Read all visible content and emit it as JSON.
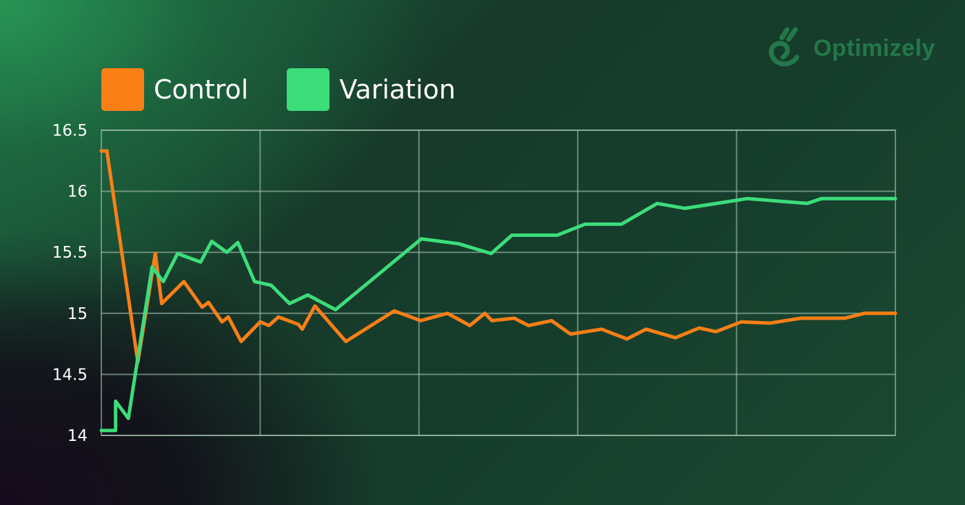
{
  "brand": {
    "name": "Optimizely",
    "icon": "optimizely-logo-icon",
    "color": "#24774a"
  },
  "legend": [
    {
      "label": "Control",
      "color": "#f97f16"
    },
    {
      "label": "Variation",
      "color": "#3ddc7b"
    }
  ],
  "chart_data": {
    "type": "line",
    "title": "",
    "xlabel": "",
    "ylabel": "",
    "ylim": [
      14,
      16.5
    ],
    "yticks": [
      "14",
      "14.5",
      "15",
      "15.5",
      "16",
      "16.5"
    ],
    "xlim": [
      0,
      100
    ],
    "x_gridlines": 5,
    "grid": true,
    "legend_position": "top-left",
    "series": [
      {
        "name": "Control",
        "color": "#f97f16",
        "points": [
          [
            0,
            16.33
          ],
          [
            0.7,
            16.33
          ],
          [
            4.6,
            14.6
          ],
          [
            6.8,
            15.49
          ],
          [
            7.6,
            15.08
          ],
          [
            10.4,
            15.26
          ],
          [
            12.7,
            15.05
          ],
          [
            13.5,
            15.09
          ],
          [
            15.2,
            14.93
          ],
          [
            16.0,
            14.97
          ],
          [
            17.6,
            14.77
          ],
          [
            20.0,
            14.93
          ],
          [
            21.1,
            14.9
          ],
          [
            22.3,
            14.97
          ],
          [
            24.8,
            14.91
          ],
          [
            25.3,
            14.87
          ],
          [
            26.9,
            15.06
          ],
          [
            30.8,
            14.77
          ],
          [
            36.9,
            15.02
          ],
          [
            40.2,
            14.94
          ],
          [
            43.6,
            15.0
          ],
          [
            46.4,
            14.9
          ],
          [
            48.3,
            15.0
          ],
          [
            49.2,
            14.94
          ],
          [
            52.0,
            14.96
          ],
          [
            53.8,
            14.9
          ],
          [
            56.7,
            14.94
          ],
          [
            59.1,
            14.83
          ],
          [
            63.0,
            14.87
          ],
          [
            66.2,
            14.79
          ],
          [
            68.6,
            14.87
          ],
          [
            72.3,
            14.8
          ],
          [
            75.3,
            14.88
          ],
          [
            77.4,
            14.85
          ],
          [
            80.6,
            14.93
          ],
          [
            84.2,
            14.92
          ],
          [
            88.1,
            14.96
          ],
          [
            93.6,
            14.96
          ],
          [
            96.1,
            15.0
          ],
          [
            100,
            15.0
          ]
        ]
      },
      {
        "name": "Variation",
        "color": "#3ddc7b",
        "points": [
          [
            0,
            14.04
          ],
          [
            1.8,
            14.04
          ],
          [
            1.8,
            14.28
          ],
          [
            3.4,
            14.14
          ],
          [
            6.4,
            15.38
          ],
          [
            7.8,
            15.26
          ],
          [
            9.6,
            15.49
          ],
          [
            12.5,
            15.42
          ],
          [
            13.9,
            15.59
          ],
          [
            15.8,
            15.5
          ],
          [
            17.2,
            15.58
          ],
          [
            19.3,
            15.26
          ],
          [
            21.4,
            15.23
          ],
          [
            23.7,
            15.08
          ],
          [
            26.0,
            15.15
          ],
          [
            29.5,
            15.03
          ],
          [
            40.3,
            15.61
          ],
          [
            45.0,
            15.57
          ],
          [
            49.1,
            15.49
          ],
          [
            51.7,
            15.64
          ],
          [
            57.4,
            15.64
          ],
          [
            60.9,
            15.73
          ],
          [
            65.5,
            15.73
          ],
          [
            70.0,
            15.9
          ],
          [
            73.5,
            15.86
          ],
          [
            81.4,
            15.94
          ],
          [
            88.9,
            15.9
          ],
          [
            90.7,
            15.94
          ],
          [
            100,
            15.94
          ]
        ]
      }
    ]
  }
}
